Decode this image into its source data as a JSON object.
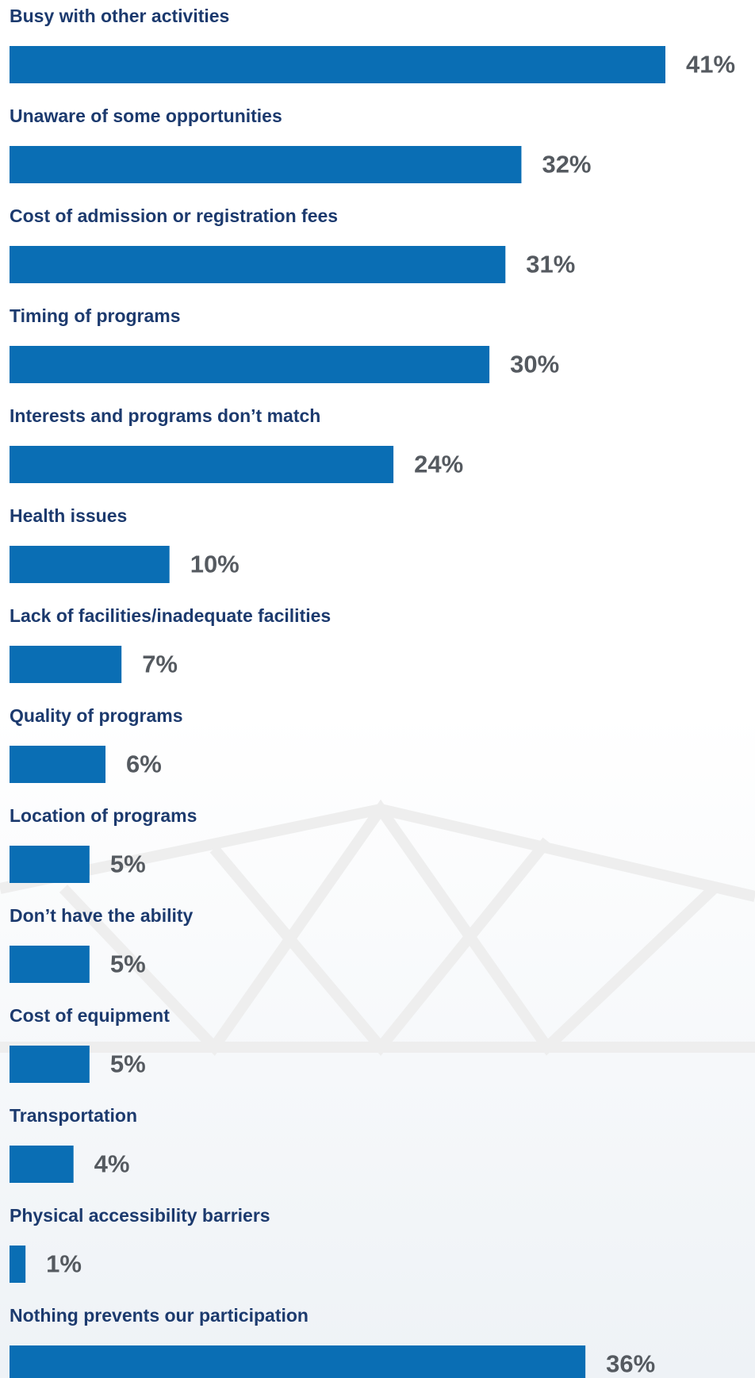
{
  "chart_data": {
    "type": "bar",
    "orientation": "horizontal",
    "color": "#0a6eb4",
    "categories": [
      "Busy with other activities",
      "Unaware of some opportunities",
      "Cost of admission or registration fees",
      "Timing of programs",
      "Interests and programs don’t match",
      "Health issues",
      "Lack of facilities/inadequate facilities",
      "Quality of programs",
      "Location of programs",
      "Don’t have the ability",
      "Cost of equipment",
      "Transportation",
      "Physical accessibility barriers",
      "Nothing prevents our participation"
    ],
    "values": [
      41,
      32,
      31,
      30,
      24,
      10,
      7,
      6,
      5,
      5,
      5,
      4,
      1,
      36
    ],
    "value_labels": [
      "41%",
      "32%",
      "31%",
      "30%",
      "24%",
      "10%",
      "7%",
      "6%",
      "5%",
      "5%",
      "5%",
      "4%",
      "1%",
      "36%"
    ]
  }
}
